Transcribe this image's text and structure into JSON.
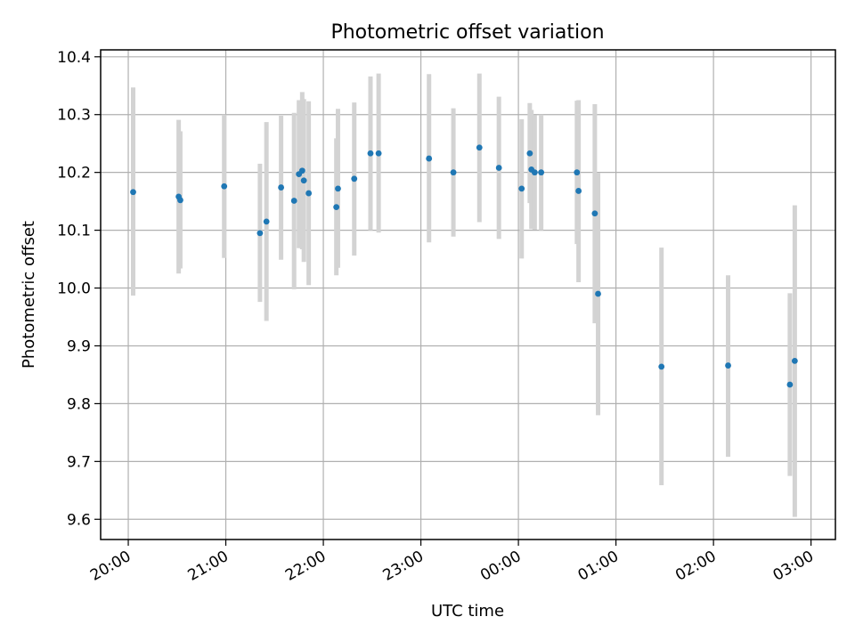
{
  "chart_data": {
    "type": "scatter",
    "title": "Photometric offset variation",
    "xlabel": "UTC time",
    "ylabel": "Photometric offset",
    "x_axis": {
      "type": "time",
      "range": [
        "19:43",
        "03:15"
      ],
      "ticks": [
        "20:00",
        "21:00",
        "22:00",
        "23:00",
        "00:00",
        "01:00",
        "02:00",
        "03:00"
      ],
      "tick_label_rotation": -30
    },
    "y_axis": {
      "range": [
        9.565,
        10.412
      ],
      "ticks": [
        "9.6",
        "9.7",
        "9.8",
        "9.9",
        "10.0",
        "10.1",
        "10.2",
        "10.3",
        "10.4"
      ]
    },
    "grid": true,
    "colors": {
      "point": "#1f77b4",
      "errorbar": "#d3d3d3",
      "grid": "#b0b0b0"
    },
    "points": [
      {
        "t": "20:03",
        "y": 10.166,
        "lo": 9.987,
        "hi": 10.347
      },
      {
        "t": "20:31",
        "y": 10.158,
        "lo": 10.025,
        "hi": 10.291
      },
      {
        "t": "20:32",
        "y": 10.152,
        "lo": 10.034,
        "hi": 10.271
      },
      {
        "t": "20:59",
        "y": 10.176,
        "lo": 10.052,
        "hi": 10.3
      },
      {
        "t": "21:21",
        "y": 10.095,
        "lo": 9.976,
        "hi": 10.215
      },
      {
        "t": "21:25",
        "y": 10.115,
        "lo": 9.943,
        "hi": 10.287
      },
      {
        "t": "21:34",
        "y": 10.174,
        "lo": 10.049,
        "hi": 10.298
      },
      {
        "t": "21:42",
        "y": 10.151,
        "lo": 9.998,
        "hi": 10.303
      },
      {
        "t": "21:45",
        "y": 10.197,
        "lo": 10.069,
        "hi": 10.325
      },
      {
        "t": "21:47",
        "y": 10.203,
        "lo": 10.067,
        "hi": 10.339
      },
      {
        "t": "21:48",
        "y": 10.186,
        "lo": 10.045,
        "hi": 10.327
      },
      {
        "t": "21:51",
        "y": 10.164,
        "lo": 10.005,
        "hi": 10.323
      },
      {
        "t": "22:08",
        "y": 10.14,
        "lo": 10.022,
        "hi": 10.259
      },
      {
        "t": "22:09",
        "y": 10.172,
        "lo": 10.035,
        "hi": 10.31
      },
      {
        "t": "22:19",
        "y": 10.189,
        "lo": 10.056,
        "hi": 10.321
      },
      {
        "t": "22:29",
        "y": 10.233,
        "lo": 10.1,
        "hi": 10.366
      },
      {
        "t": "22:34",
        "y": 10.233,
        "lo": 10.096,
        "hi": 10.371
      },
      {
        "t": "23:05",
        "y": 10.224,
        "lo": 10.079,
        "hi": 10.37
      },
      {
        "t": "23:20",
        "y": 10.2,
        "lo": 10.089,
        "hi": 10.311
      },
      {
        "t": "23:36",
        "y": 10.243,
        "lo": 10.114,
        "hi": 10.371
      },
      {
        "t": "23:48",
        "y": 10.208,
        "lo": 10.085,
        "hi": 10.331
      },
      {
        "t": "00:02",
        "y": 10.172,
        "lo": 10.051,
        "hi": 10.292
      },
      {
        "t": "00:07",
        "y": 10.233,
        "lo": 10.147,
        "hi": 10.32
      },
      {
        "t": "00:08",
        "y": 10.205,
        "lo": 10.102,
        "hi": 10.308
      },
      {
        "t": "00:10",
        "y": 10.2,
        "lo": 10.101,
        "hi": 10.299
      },
      {
        "t": "00:14",
        "y": 10.2,
        "lo": 10.1,
        "hi": 10.3
      },
      {
        "t": "00:36",
        "y": 10.2,
        "lo": 10.076,
        "hi": 10.324
      },
      {
        "t": "00:37",
        "y": 10.168,
        "lo": 10.01,
        "hi": 10.325
      },
      {
        "t": "00:47",
        "y": 10.129,
        "lo": 9.939,
        "hi": 10.318
      },
      {
        "t": "00:49",
        "y": 9.99,
        "lo": 9.78,
        "hi": 10.199
      },
      {
        "t": "01:28",
        "y": 9.864,
        "lo": 9.659,
        "hi": 10.07
      },
      {
        "t": "02:09",
        "y": 9.866,
        "lo": 9.708,
        "hi": 10.022
      },
      {
        "t": "02:47",
        "y": 9.833,
        "lo": 9.675,
        "hi": 9.991
      },
      {
        "t": "02:50",
        "y": 9.874,
        "lo": 9.604,
        "hi": 10.143
      }
    ]
  }
}
